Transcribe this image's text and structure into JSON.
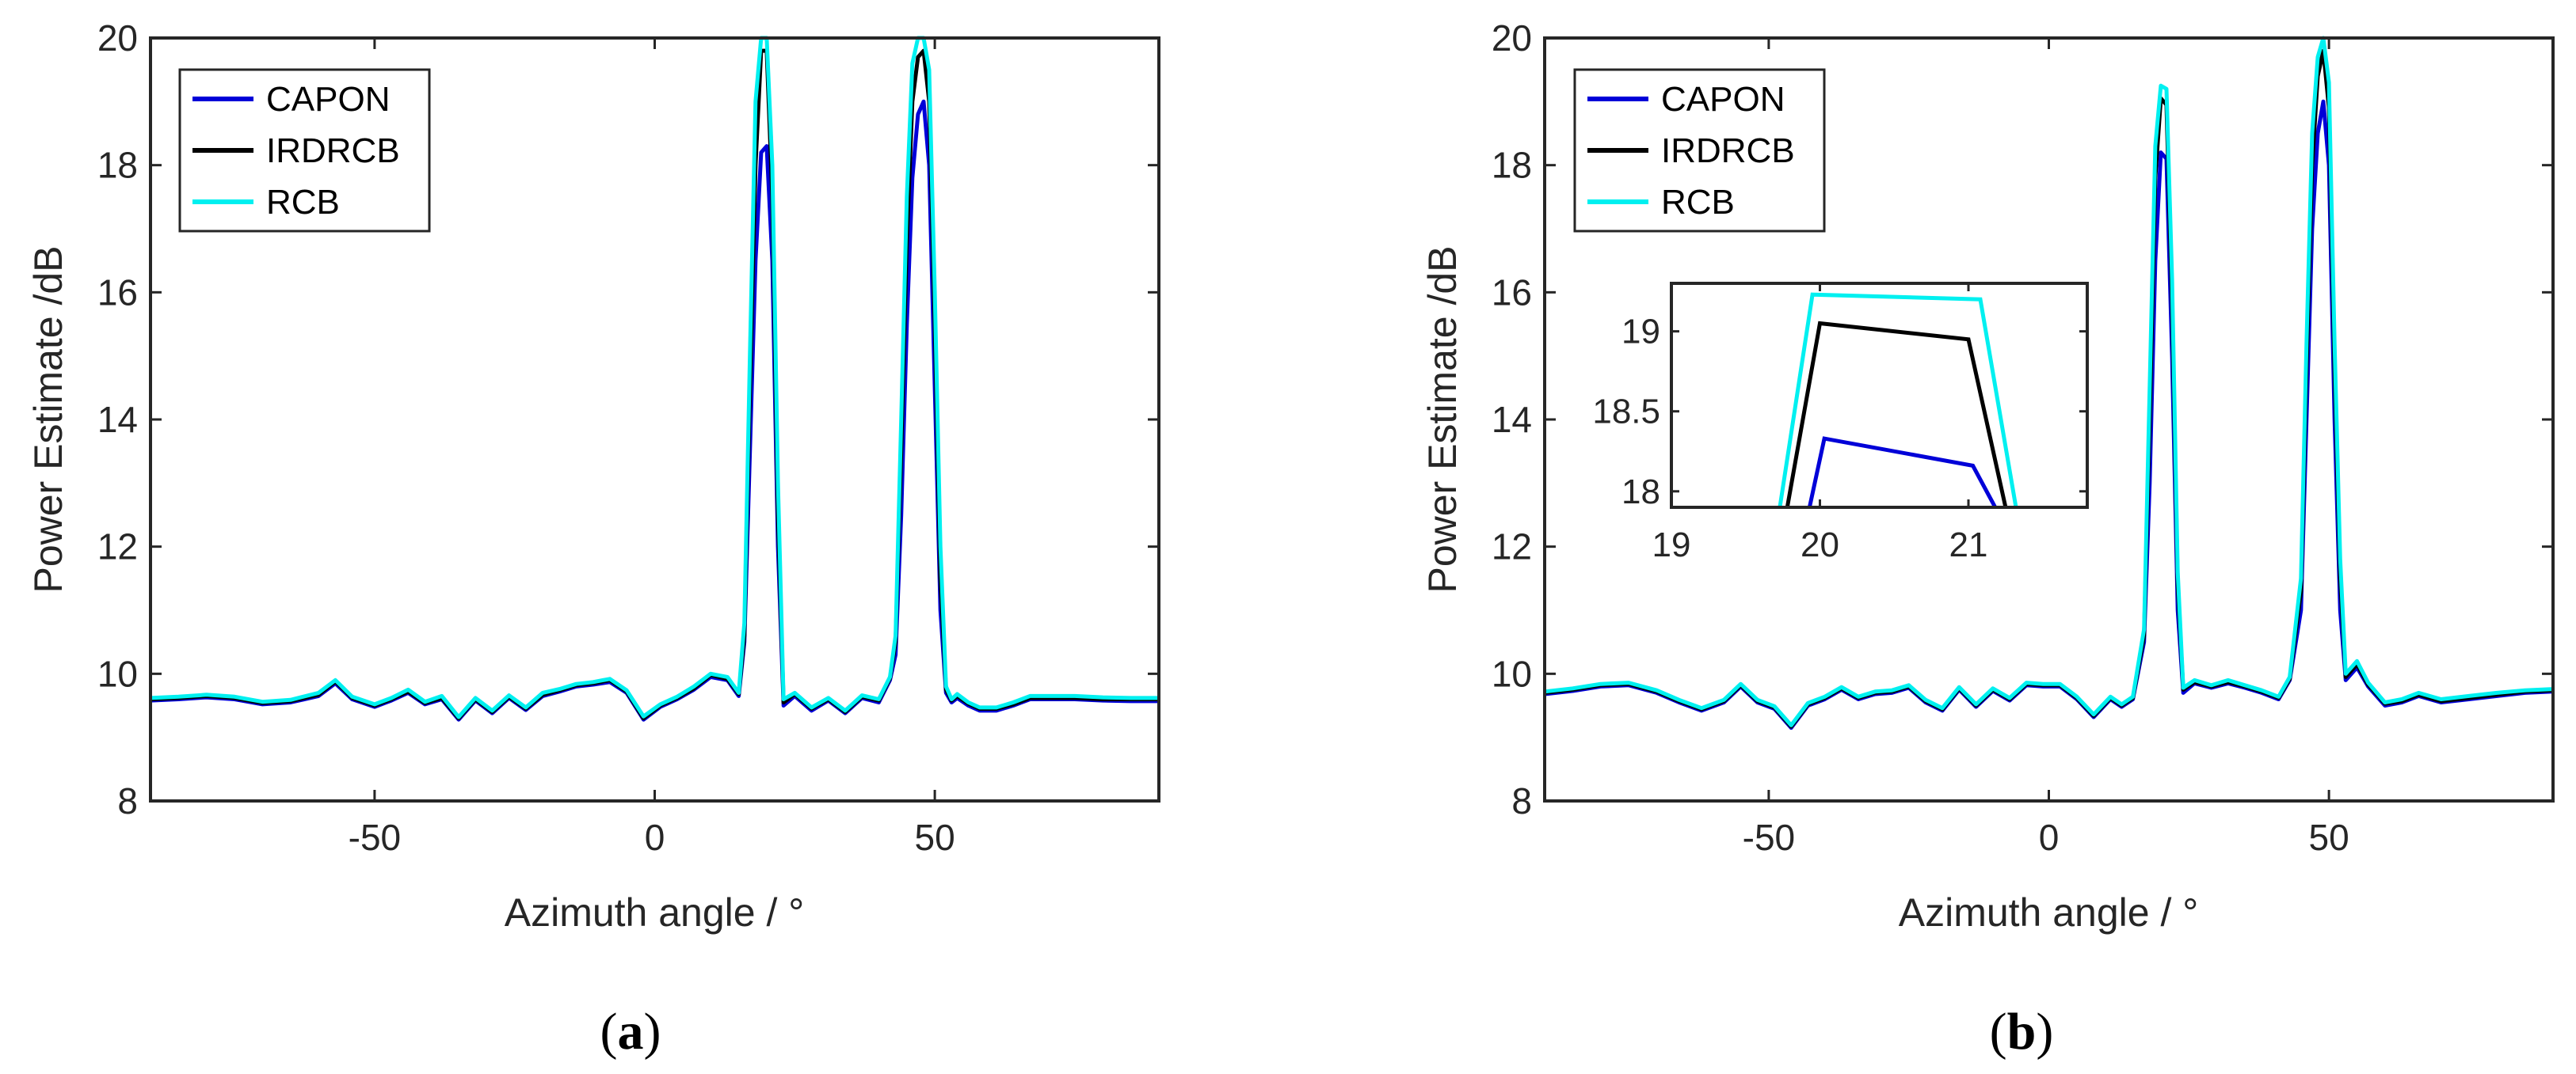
{
  "chart_data": [
    {
      "type": "line",
      "caption_letter": "a",
      "xlabel": "Azimuth angle / °",
      "ylabel": "Power Estimate /dB",
      "xlim": [
        -90,
        90
      ],
      "ylim": [
        8,
        20
      ],
      "xticks": [
        -50,
        0,
        50
      ],
      "yticks": [
        8,
        10,
        12,
        14,
        16,
        18,
        20
      ],
      "x": [
        -90,
        -85,
        -80,
        -75,
        -70,
        -65,
        -60,
        -57,
        -54,
        -50,
        -47,
        -44,
        -41,
        -38,
        -35,
        -32,
        -29,
        -26,
        -23,
        -20,
        -17,
        -14,
        -11,
        -8,
        -5,
        -2,
        1,
        4,
        7,
        10,
        13,
        15,
        16,
        17,
        18,
        19,
        20,
        21,
        22,
        23,
        25,
        28,
        31,
        34,
        37,
        40,
        42,
        43,
        44,
        45,
        46,
        47,
        48,
        49,
        50,
        51,
        52,
        53,
        54,
        56,
        58,
        61,
        64,
        67,
        70,
        75,
        80,
        85,
        90
      ],
      "series": [
        {
          "name": "CAPON",
          "color": "#0000d8",
          "values": [
            9.58,
            9.6,
            9.63,
            9.6,
            9.52,
            9.55,
            9.65,
            9.85,
            9.6,
            9.48,
            9.58,
            9.7,
            9.52,
            9.6,
            9.28,
            9.58,
            9.38,
            9.62,
            9.43,
            9.65,
            9.72,
            9.8,
            9.83,
            9.87,
            9.7,
            9.28,
            9.48,
            9.6,
            9.75,
            9.95,
            9.9,
            9.65,
            10.5,
            13.5,
            16.5,
            18.2,
            18.3,
            16.5,
            12.0,
            9.5,
            9.65,
            9.42,
            9.58,
            9.38,
            9.62,
            9.55,
            9.9,
            10.3,
            12.5,
            15.5,
            17.8,
            18.8,
            19.0,
            18.0,
            14.5,
            11.0,
            9.7,
            9.55,
            9.62,
            9.5,
            9.42,
            9.42,
            9.5,
            9.6,
            9.6,
            9.6,
            9.58,
            9.57,
            9.57
          ]
        },
        {
          "name": "IRDRCB",
          "color": "#000000",
          "values": [
            9.6,
            9.62,
            9.65,
            9.62,
            9.54,
            9.57,
            9.67,
            9.88,
            9.62,
            9.5,
            9.6,
            9.72,
            9.54,
            9.62,
            9.3,
            9.6,
            9.4,
            9.64,
            9.45,
            9.67,
            9.74,
            9.82,
            9.85,
            9.9,
            9.72,
            9.3,
            9.5,
            9.62,
            9.77,
            9.98,
            9.92,
            9.68,
            10.6,
            14.5,
            18.0,
            19.8,
            19.8,
            17.5,
            12.5,
            9.55,
            9.68,
            9.45,
            9.6,
            9.4,
            9.64,
            9.58,
            9.93,
            10.5,
            13.5,
            16.8,
            19.0,
            19.7,
            19.8,
            19.0,
            15.5,
            11.5,
            9.75,
            9.58,
            9.65,
            9.53,
            9.45,
            9.45,
            9.52,
            9.62,
            9.62,
            9.62,
            9.6,
            9.6,
            9.6
          ]
        },
        {
          "name": "RCB",
          "color": "#00f0f0",
          "values": [
            9.62,
            9.64,
            9.67,
            9.64,
            9.56,
            9.59,
            9.7,
            9.9,
            9.64,
            9.52,
            9.62,
            9.75,
            9.56,
            9.65,
            9.32,
            9.62,
            9.42,
            9.66,
            9.47,
            9.7,
            9.76,
            9.84,
            9.87,
            9.92,
            9.74,
            9.33,
            9.52,
            9.64,
            9.8,
            10.0,
            9.95,
            9.7,
            10.8,
            15.0,
            19.0,
            20.0,
            20.0,
            18.0,
            13.0,
            9.6,
            9.7,
            9.47,
            9.62,
            9.42,
            9.66,
            9.6,
            9.95,
            10.6,
            14.0,
            17.5,
            19.6,
            20.0,
            20.0,
            19.5,
            16.0,
            12.0,
            9.8,
            9.6,
            9.68,
            9.55,
            9.47,
            9.47,
            9.55,
            9.65,
            9.65,
            9.65,
            9.63,
            9.62,
            9.62
          ]
        }
      ],
      "legend": "top-left"
    },
    {
      "type": "line",
      "caption_letter": "b",
      "xlabel": "Azimuth angle / °",
      "ylabel": "Power Estimate /dB",
      "xlim": [
        -90,
        90
      ],
      "ylim": [
        8,
        20
      ],
      "xticks": [
        -50,
        0,
        50
      ],
      "yticks": [
        8,
        10,
        12,
        14,
        16,
        18,
        20
      ],
      "x": [
        -90,
        -85,
        -80,
        -75,
        -70,
        -66,
        -62,
        -58,
        -55,
        -52,
        -49,
        -46,
        -43,
        -40,
        -37,
        -34,
        -31,
        -28,
        -25,
        -22,
        -19,
        -16,
        -13,
        -10,
        -7,
        -4,
        -1,
        2,
        5,
        8,
        11,
        13,
        15,
        17,
        18,
        19,
        20,
        21,
        22,
        23,
        24,
        26,
        29,
        32,
        35,
        38,
        41,
        43,
        45,
        46,
        47,
        48,
        49,
        50,
        51,
        52,
        53,
        55,
        57,
        60,
        63,
        66,
        70,
        75,
        80,
        85,
        90
      ],
      "series": [
        {
          "name": "CAPON",
          "color": "#0000d8",
          "values": [
            9.68,
            9.73,
            9.8,
            9.82,
            9.7,
            9.55,
            9.42,
            9.55,
            9.8,
            9.55,
            9.45,
            9.15,
            9.5,
            9.6,
            9.75,
            9.6,
            9.68,
            9.7,
            9.78,
            9.55,
            9.42,
            9.75,
            9.48,
            9.73,
            9.58,
            9.82,
            9.8,
            9.8,
            9.6,
            9.32,
            9.6,
            9.48,
            9.6,
            10.5,
            13.0,
            16.5,
            18.2,
            18.1,
            15.0,
            11.0,
            9.7,
            9.85,
            9.78,
            9.85,
            9.78,
            9.7,
            9.6,
            9.9,
            11.0,
            14.0,
            17.0,
            18.5,
            19.0,
            18.0,
            14.0,
            11.0,
            9.9,
            10.1,
            9.8,
            9.5,
            9.55,
            9.65,
            9.55,
            9.6,
            9.65,
            9.7,
            9.72
          ]
        },
        {
          "name": "IRDRCB",
          "color": "#000000",
          "values": [
            9.7,
            9.75,
            9.82,
            9.84,
            9.72,
            9.57,
            9.44,
            9.57,
            9.82,
            9.57,
            9.47,
            9.17,
            9.52,
            9.62,
            9.77,
            9.62,
            9.7,
            9.72,
            9.8,
            9.57,
            9.44,
            9.77,
            9.5,
            9.75,
            9.6,
            9.84,
            9.82,
            9.82,
            9.62,
            9.34,
            9.62,
            9.5,
            9.62,
            10.6,
            14.0,
            17.8,
            19.05,
            18.95,
            15.8,
            11.4,
            9.75,
            9.87,
            9.8,
            9.87,
            9.8,
            9.72,
            9.62,
            9.92,
            11.3,
            14.8,
            18.0,
            19.4,
            19.8,
            18.9,
            14.8,
            11.5,
            9.95,
            10.15,
            9.83,
            9.53,
            9.57,
            9.67,
            9.57,
            9.62,
            9.67,
            9.72,
            9.74
          ]
        },
        {
          "name": "RCB",
          "color": "#00f0f0",
          "values": [
            9.72,
            9.77,
            9.84,
            9.86,
            9.74,
            9.59,
            9.46,
            9.59,
            9.84,
            9.59,
            9.49,
            9.19,
            9.54,
            9.64,
            9.79,
            9.64,
            9.72,
            9.74,
            9.82,
            9.59,
            9.46,
            9.79,
            9.52,
            9.77,
            9.62,
            9.86,
            9.84,
            9.84,
            9.64,
            9.36,
            9.64,
            9.52,
            9.64,
            10.7,
            14.5,
            18.3,
            19.25,
            19.2,
            16.2,
            11.6,
            9.78,
            9.9,
            9.82,
            9.9,
            9.82,
            9.74,
            9.64,
            9.95,
            11.5,
            15.2,
            18.5,
            19.7,
            20.0,
            19.3,
            15.2,
            11.8,
            10.0,
            10.2,
            9.86,
            9.55,
            9.6,
            9.7,
            9.6,
            9.65,
            9.7,
            9.74,
            9.76
          ]
        }
      ],
      "legend": "top-left",
      "inset": {
        "xlim": [
          19,
          21.8
        ],
        "ylim": [
          17.9,
          19.3
        ],
        "xticks": [
          19,
          20,
          21
        ],
        "yticks": [
          18,
          18.5,
          19
        ],
        "ytick_labels": [
          "18",
          "18.5",
          "19"
        ],
        "series": [
          {
            "name": "CAPON",
            "color": "#0000d8",
            "x": [
              19.93,
              20.03,
              21.03,
              21.18
            ],
            "values": [
              17.9,
              18.33,
              18.16,
              17.9
            ]
          },
          {
            "name": "IRDRCB",
            "color": "#000000",
            "x": [
              19.78,
              20.0,
              21.0,
              21.25
            ],
            "values": [
              17.9,
              19.05,
              18.95,
              17.9
            ]
          },
          {
            "name": "RCB",
            "color": "#00f0f0",
            "x": [
              19.73,
              19.95,
              21.08,
              21.32
            ],
            "values": [
              17.9,
              19.23,
              19.2,
              17.9
            ]
          }
        ]
      }
    }
  ]
}
